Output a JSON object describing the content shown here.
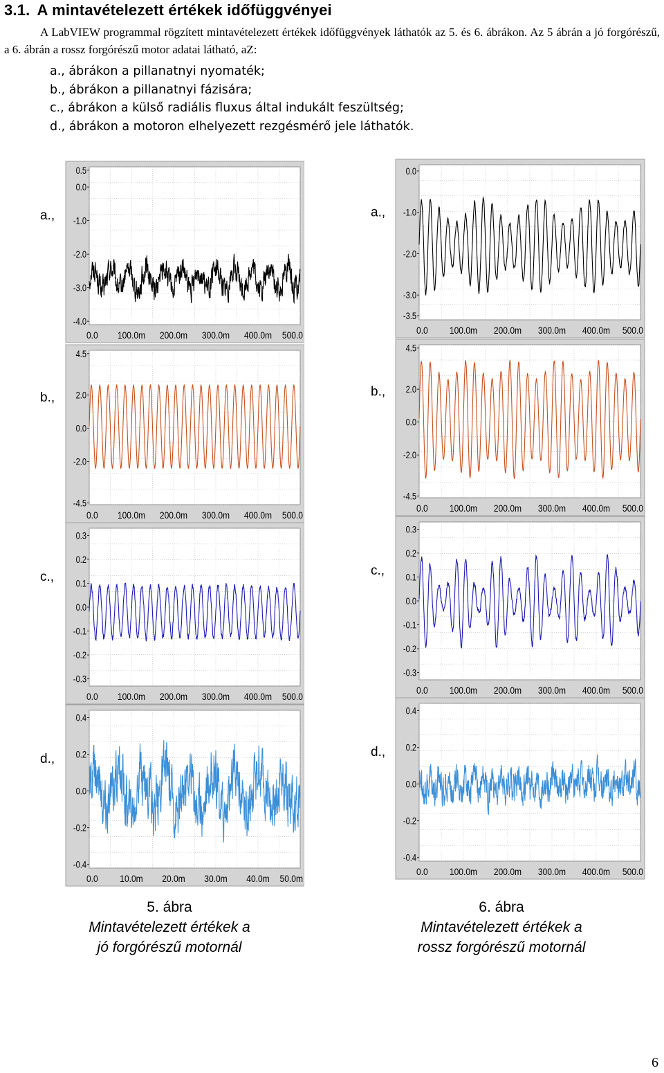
{
  "section": {
    "number": "3.1.",
    "title": "A mintavételezett értékek időfüggvényei"
  },
  "intro": "A LabVIEW programmal rögzített mintavételezett értékek időfüggvények láthatók az 5. és 6. ábrákon. Az 5 ábrán a jó forgórészű, a 6. ábrán a rossz forgórészű motor adatai látható, aZ:",
  "list": [
    "a., ábrákon a pillanatnyi nyomaték;",
    "b., ábrákon a pillanatnyi fázisára;",
    "c., ábrákon a külső radiális fluxus által indukált feszültség;",
    "d., ábrákon a motoron elhelyezett rezgésmérő jele láthatók."
  ],
  "figures": [
    {
      "number": "5. ábra",
      "caption_line1": "Mintavételezett értékek a",
      "caption_line2": "jó forgórészű motornál"
    },
    {
      "number": "6. ábra",
      "caption_line1": "Mintavételezett értékek a",
      "caption_line2": "rossz forgórészű motornál"
    }
  ],
  "page_number": "6",
  "colors": {
    "black": "#000000",
    "orange": "#c8501c",
    "darkblue": "#1a1ab4",
    "lightblue": "#3a8fd8",
    "frame": "#c8c8c8"
  },
  "chart_data": [
    {
      "type": "line",
      "figure": "5",
      "label": "a.,",
      "color": "#000000",
      "yticks": [
        "0.5",
        "0.0",
        "-1.0",
        "-2.0",
        "-3.0",
        "-4.0"
      ],
      "ytick_values": [
        0.5,
        0,
        -1,
        -2,
        -3,
        -4
      ],
      "ylim": [
        -4.1,
        0.6
      ],
      "xticks": [
        "0.0",
        "100.0m",
        "200.0m",
        "300.0m",
        "400.0m",
        "500.0"
      ],
      "xlim": [
        0,
        0.5
      ],
      "signal": {
        "offset": -2.75,
        "amplitude": 0.32,
        "cycles": 12,
        "noise": 0.28,
        "noise_freq": 420
      }
    },
    {
      "type": "line",
      "figure": "5",
      "label": "b.,",
      "color": "#c8501c",
      "yticks": [
        "4.5",
        "2.0",
        "0.0",
        "-2.0",
        "-4.5"
      ],
      "ytick_values": [
        4.5,
        2,
        0,
        -2,
        -4.5
      ],
      "ylim": [
        -4.6,
        4.7
      ],
      "xticks": [
        "0.0",
        "100.0m",
        "200.0m",
        "300.0m",
        "400.0m",
        "500.0"
      ],
      "xlim": [
        0,
        0.5
      ],
      "signal": {
        "offset": 0.1,
        "amplitude": 2.5,
        "cycles": 25,
        "noise": 0.0,
        "noise_freq": 0
      }
    },
    {
      "type": "line",
      "figure": "5",
      "label": "c.,",
      "color": "#1a1ab4",
      "yticks": [
        "0.3",
        "0.2",
        "0.1",
        "0.0",
        "-0.1",
        "-0.2",
        "-0.3"
      ],
      "ytick_values": [
        0.3,
        0.2,
        0.1,
        0,
        -0.1,
        -0.2,
        -0.3
      ],
      "ylim": [
        -0.33,
        0.33
      ],
      "xticks": [
        "0.0",
        "100.0m",
        "200.0m",
        "300.0m",
        "400.0m",
        "500.0"
      ],
      "xlim": [
        0,
        0.5
      ],
      "signal": {
        "offset": -0.02,
        "amplitude": 0.11,
        "cycles": 25,
        "noise": 0.01,
        "noise_freq": 300
      }
    },
    {
      "type": "line",
      "figure": "5",
      "label": "d.,",
      "color": "#3a8fd8",
      "yticks": [
        "0.4",
        "0.2",
        "0.0",
        "-0.2",
        "-0.4"
      ],
      "ytick_values": [
        0.4,
        0.2,
        0,
        -0.2,
        -0.4
      ],
      "ylim": [
        -0.42,
        0.44
      ],
      "xticks": [
        "0.0",
        "10.0m",
        "20.0m",
        "30.0m",
        "40.0m",
        "50.0m"
      ],
      "xlim": [
        0,
        0.05
      ],
      "signal": {
        "offset": 0.0,
        "amplitude": 0.1,
        "cycles": 9,
        "noise": 0.12,
        "noise_freq": 160
      }
    },
    {
      "type": "line",
      "figure": "6",
      "label": "a.,",
      "color": "#000000",
      "yticks": [
        "0.0",
        "-1.0",
        "-2.0",
        "-3.0",
        "-3.5"
      ],
      "ytick_values": [
        0,
        -1,
        -2,
        -3,
        -3.5
      ],
      "ylim": [
        -3.6,
        0.15
      ],
      "xticks": [
        "0.0",
        "100.0m",
        "200.0m",
        "300.0m",
        "400.0m",
        "500.0"
      ],
      "xlim": [
        0,
        0.5
      ],
      "signal": {
        "offset": -1.8,
        "amplitude": 0.85,
        "cycles": 25,
        "noise": 0.05,
        "noise_freq": 200,
        "beat": 0.35,
        "beat_cycles": 4
      }
    },
    {
      "type": "line",
      "figure": "6",
      "label": "b.,",
      "color": "#c8501c",
      "yticks": [
        "4.5",
        "2.0",
        "0.0",
        "-2.0",
        "-4.5"
      ],
      "ytick_values": [
        4.5,
        2,
        0,
        -2,
        -4.5
      ],
      "ylim": [
        -4.6,
        4.7
      ],
      "xticks": [
        "0.0",
        "100.0m",
        "200.0m",
        "300.0m",
        "400.0m",
        "500.0"
      ],
      "xlim": [
        0,
        0.5
      ],
      "signal": {
        "offset": 0.2,
        "amplitude": 3.0,
        "cycles": 25,
        "noise": 0.05,
        "noise_freq": 200,
        "beat": 0.2,
        "beat_cycles": 5
      }
    },
    {
      "type": "line",
      "figure": "6",
      "label": "c.,",
      "color": "#1a1ab4",
      "yticks": [
        "0.3",
        "0.2",
        "0.1",
        "0.0",
        "-0.1",
        "-0.2",
        "-0.3"
      ],
      "ytick_values": [
        0.3,
        0.2,
        0.1,
        0,
        -0.1,
        -0.2,
        -0.3
      ],
      "ylim": [
        -0.33,
        0.33
      ],
      "xticks": [
        "0.0",
        "100.0m",
        "200.0m",
        "300.0m",
        "400.0m",
        "500.0"
      ],
      "xlim": [
        0,
        0.5
      ],
      "signal": {
        "offset": 0.0,
        "amplitude": 0.12,
        "cycles": 25,
        "noise": 0.01,
        "noise_freq": 300,
        "beat": 0.6,
        "beat_cycles": 6
      }
    },
    {
      "type": "line",
      "figure": "6",
      "label": "d.,",
      "color": "#3a8fd8",
      "yticks": [
        "0.4",
        "0.2",
        "0.0",
        "-0.2",
        "-0.4"
      ],
      "ytick_values": [
        0.4,
        0.2,
        0,
        -0.2,
        -0.4
      ],
      "ylim": [
        -0.42,
        0.44
      ],
      "xticks": [
        "0.0",
        "100.0m",
        "200.0m",
        "300.0m",
        "400.0m",
        "500.0"
      ],
      "xlim": [
        0,
        0.5
      ],
      "signal": {
        "offset": 0.0,
        "amplitude": 0.03,
        "cycles": 25,
        "noise": 0.07,
        "noise_freq": 500
      }
    }
  ]
}
